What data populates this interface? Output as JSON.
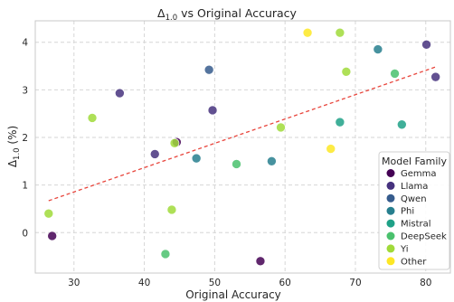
{
  "chart_data": {
    "type": "scatter",
    "title": "Δ1.0 vs Original Accuracy",
    "title_main": "Δ",
    "title_sub": "1.0",
    "title_rest": " vs Original Accuracy",
    "xlabel": "Original Accuracy",
    "ylabel": "Δ1.0 (%)",
    "ylabel_main": "Δ",
    "ylabel_sub": "1.0",
    "ylabel_rest": " (%)",
    "xlim": [
      24.5,
      83.5
    ],
    "ylim": [
      -0.85,
      4.45
    ],
    "xticks": [
      30,
      40,
      50,
      60,
      70,
      80
    ],
    "yticks": [
      0,
      1,
      2,
      3,
      4
    ],
    "grid": true,
    "legend_title": "Model Family",
    "legend_position": "lower-right",
    "series": [
      {
        "name": "Gemma",
        "color": "#440154",
        "points": [
          [
            26.9,
            -0.07
          ],
          [
            44.6,
            1.9
          ],
          [
            56.5,
            -0.6
          ]
        ]
      },
      {
        "name": "Llama",
        "color": "#46327e",
        "points": [
          [
            36.5,
            2.93
          ],
          [
            41.5,
            1.65
          ],
          [
            49.7,
            2.57
          ],
          [
            80.1,
            3.95
          ],
          [
            81.4,
            3.27
          ]
        ]
      },
      {
        "name": "Qwen",
        "color": "#365c8d",
        "points": [
          [
            49.2,
            3.42
          ]
        ]
      },
      {
        "name": "Phi",
        "color": "#277f8e",
        "points": [
          [
            47.4,
            1.56
          ],
          [
            58.1,
            1.5
          ],
          [
            73.2,
            3.85
          ]
        ]
      },
      {
        "name": "Mistral",
        "color": "#1fa187",
        "points": [
          [
            67.8,
            2.32
          ],
          [
            76.6,
            2.27
          ]
        ]
      },
      {
        "name": "DeepSeek",
        "color": "#4ac16d",
        "points": [
          [
            43.0,
            -0.45
          ],
          [
            53.1,
            1.44
          ],
          [
            75.6,
            3.34
          ]
        ]
      },
      {
        "name": "Yi",
        "color": "#a0da39",
        "points": [
          [
            26.4,
            0.4
          ],
          [
            32.6,
            2.41
          ],
          [
            43.9,
            0.48
          ],
          [
            44.3,
            1.88
          ],
          [
            59.4,
            2.21
          ],
          [
            67.8,
            4.2
          ],
          [
            68.7,
            3.38
          ]
        ]
      },
      {
        "name": "Other",
        "color": "#fde725",
        "points": [
          [
            63.2,
            4.2
          ],
          [
            66.5,
            1.76
          ]
        ]
      }
    ],
    "trendline": {
      "color": "#e8453c",
      "x": [
        26.4,
        81.4
      ],
      "y": [
        0.67,
        3.48
      ]
    }
  }
}
